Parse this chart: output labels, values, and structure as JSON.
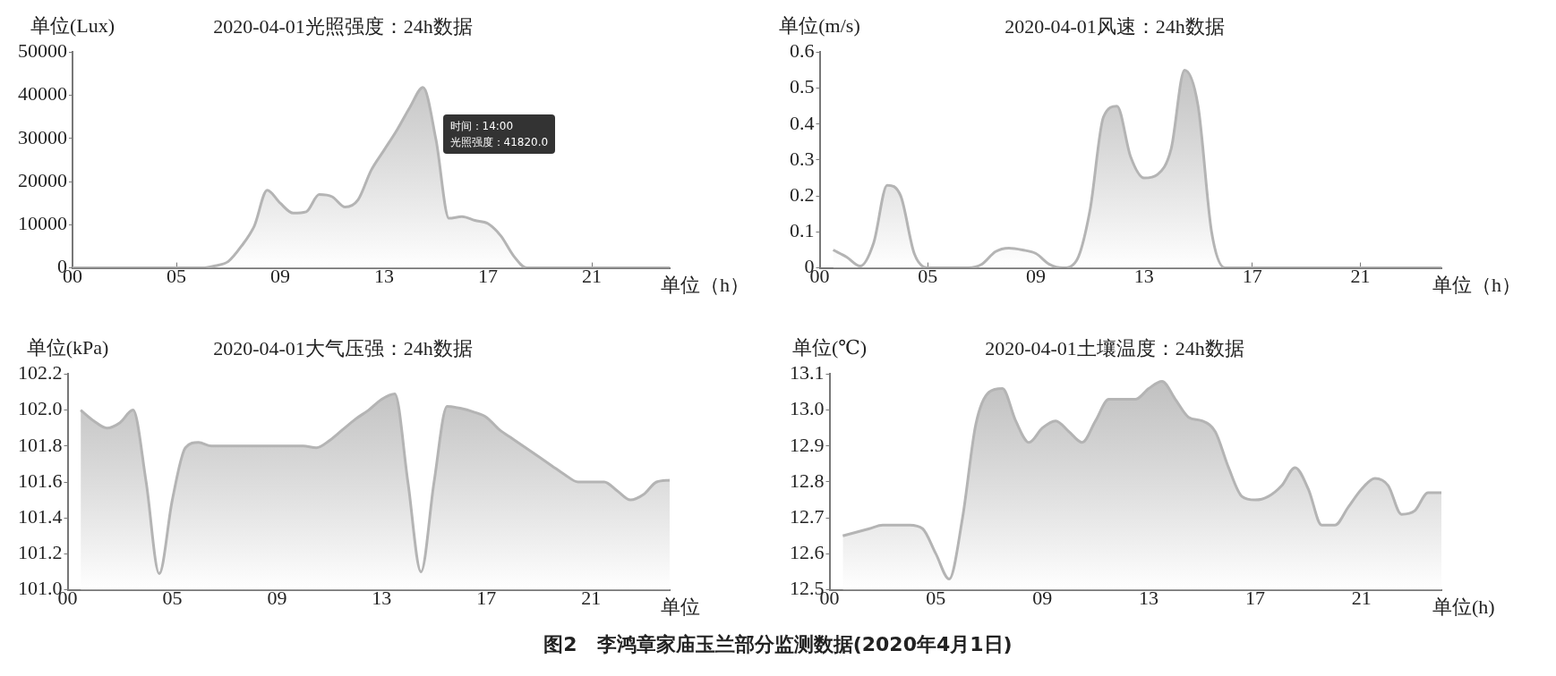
{
  "chart_data": [
    {
      "type": "area",
      "title": "2020-04-01光照强度：24h数据",
      "ylabel": "单位(Lux)",
      "xlabel": "单位（h）",
      "color": "#b4b4b4",
      "marker": "none",
      "categories": [
        "00",
        null,
        null,
        null,
        null,
        null,
        null,
        null,
        "05",
        null,
        null,
        null,
        null,
        null,
        null,
        null,
        "09",
        null,
        null,
        null,
        null,
        null,
        null,
        null,
        "13",
        null,
        null,
        null,
        null,
        null,
        null,
        null,
        "17",
        null,
        null,
        null,
        null,
        null,
        null,
        null,
        "21",
        null,
        null,
        null,
        null,
        null,
        null
      ],
      "ylim": [
        0,
        50000
      ],
      "yticks": [
        0,
        10000,
        20000,
        30000,
        40000,
        50000
      ],
      "values": [
        0,
        0,
        0,
        0,
        0,
        0,
        0,
        0,
        0,
        0,
        0,
        500,
        1500,
        5000,
        9700,
        18000,
        15000,
        12700,
        13000,
        17000,
        16500,
        14100,
        15800,
        22600,
        27300,
        32000,
        37300,
        41820,
        29700,
        11500,
        11900,
        11000,
        10300,
        7400,
        2700,
        0,
        0,
        0,
        0,
        0,
        0,
        0,
        0,
        0,
        0,
        0,
        0
      ],
      "annotations": [
        "时间：14:00",
        "光照强度：41820.0"
      ]
    },
    {
      "type": "area",
      "title": "2020-04-01风速：24h数据",
      "ylabel": "单位(m/s)",
      "xlabel": "单位（h）",
      "color": "#b4b4b4",
      "marker": "none",
      "categories": [
        "00",
        null,
        null,
        null,
        null,
        null,
        null,
        null,
        "05",
        null,
        null,
        null,
        null,
        null,
        null,
        null,
        "09",
        null,
        null,
        null,
        null,
        null,
        null,
        null,
        "13",
        null,
        null,
        null,
        null,
        null,
        null,
        null,
        "17",
        null,
        null,
        null,
        null,
        null,
        null,
        null,
        "21",
        null,
        null,
        null,
        null,
        null,
        null
      ],
      "ylim": [
        0,
        0.6
      ],
      "yticks": [
        0,
        0.1,
        0.2,
        0.3,
        0.4,
        0.5,
        0.6
      ],
      "values": [
        null,
        0.05,
        0.03,
        0.005,
        0.07,
        0.23,
        0.2,
        0.04,
        0,
        0,
        0,
        0,
        0.01,
        0.045,
        0.055,
        0.05,
        0.04,
        0.01,
        0,
        0.02,
        0.16,
        0.42,
        0.45,
        0.31,
        0.25,
        0.26,
        0.33,
        0.55,
        0.45,
        0.1,
        0,
        0,
        0,
        0,
        0,
        0,
        0,
        0,
        0,
        0,
        0,
        0,
        0,
        0,
        0,
        0,
        0
      ]
    },
    {
      "type": "area",
      "title": "2020-04-01大气压强：24h数据",
      "ylabel": "单位(kPa)",
      "xlabel": "单位",
      "color": "#b4b4b4",
      "marker": "none",
      "categories": [
        "00",
        null,
        null,
        null,
        null,
        null,
        null,
        null,
        "05",
        null,
        null,
        null,
        null,
        null,
        null,
        null,
        "09",
        null,
        null,
        null,
        null,
        null,
        null,
        null,
        "13",
        null,
        null,
        null,
        null,
        null,
        null,
        null,
        "17",
        null,
        null,
        null,
        null,
        null,
        null,
        null,
        "21",
        null,
        null,
        null,
        null,
        null,
        null
      ],
      "ylim": [
        101,
        102.2
      ],
      "yticks": [
        {
          "value": 101,
          "label": "101.0"
        },
        {
          "value": 101.2,
          "label": "101.2"
        },
        {
          "value": 101.4,
          "label": "101.4"
        },
        {
          "value": 101.6,
          "label": "101.6"
        },
        {
          "value": 101.8,
          "label": "101.8"
        },
        {
          "value": 102,
          "label": "102.0"
        },
        {
          "value": 102.2,
          "label": "102.2"
        }
      ],
      "values": [
        null,
        102,
        101.94,
        101.9,
        101.93,
        102,
        101.6,
        101.09,
        101.5,
        101.79,
        101.82,
        101.8,
        101.8,
        101.8,
        101.8,
        101.8,
        101.8,
        101.8,
        101.8,
        101.79,
        101.83,
        101.89,
        101.95,
        102,
        102.06,
        102.09,
        101.6,
        101.1,
        101.6,
        102.02,
        102.01,
        101.99,
        101.96,
        101.89,
        101.84,
        101.79,
        101.74,
        101.69,
        101.64,
        101.6,
        101.6,
        101.6,
        101.55,
        101.5,
        101.53,
        101.6,
        101.61
      ]
    },
    {
      "type": "area",
      "title": "2020-04-01土壤温度：24h数据",
      "ylabel": "单位(℃)",
      "xlabel": "单位(h)",
      "color": "#b4b4b4",
      "marker": "none",
      "categories": [
        "00",
        null,
        null,
        null,
        null,
        null,
        null,
        null,
        "05",
        null,
        null,
        null,
        null,
        null,
        null,
        null,
        "09",
        null,
        null,
        null,
        null,
        null,
        null,
        null,
        "13",
        null,
        null,
        null,
        null,
        null,
        null,
        null,
        "17",
        null,
        null,
        null,
        null,
        null,
        null,
        null,
        "21",
        null,
        null,
        null,
        null,
        null,
        null
      ],
      "ylim": [
        12.5,
        13.1
      ],
      "yticks": [
        {
          "value": 12.5,
          "label": "12.5"
        },
        {
          "value": 12.6,
          "label": "12.6"
        },
        {
          "value": 12.7,
          "label": "12.7"
        },
        {
          "value": 12.8,
          "label": "12.8"
        },
        {
          "value": 12.9,
          "label": "12.9"
        },
        {
          "value": 13,
          "label": "13.0"
        },
        {
          "value": 13.1,
          "label": "13.1"
        }
      ],
      "values": [
        null,
        12.65,
        12.66,
        12.67,
        12.68,
        12.68,
        12.68,
        12.67,
        12.6,
        12.53,
        12.7,
        12.96,
        13.05,
        13.06,
        12.97,
        12.91,
        12.95,
        12.97,
        12.94,
        12.91,
        12.97,
        13.03,
        13.03,
        13.03,
        13.06,
        13.08,
        13.03,
        12.98,
        12.97,
        12.94,
        12.84,
        12.76,
        12.75,
        12.76,
        12.79,
        12.84,
        12.78,
        12.68,
        12.68,
        12.73,
        12.78,
        12.81,
        12.79,
        12.71,
        12.72,
        12.77,
        12.77
      ],
      "annotations": [
        "图2　李鸿章家庙玉兰部分监测数据(2020年4月1日)"
      ]
    }
  ]
}
